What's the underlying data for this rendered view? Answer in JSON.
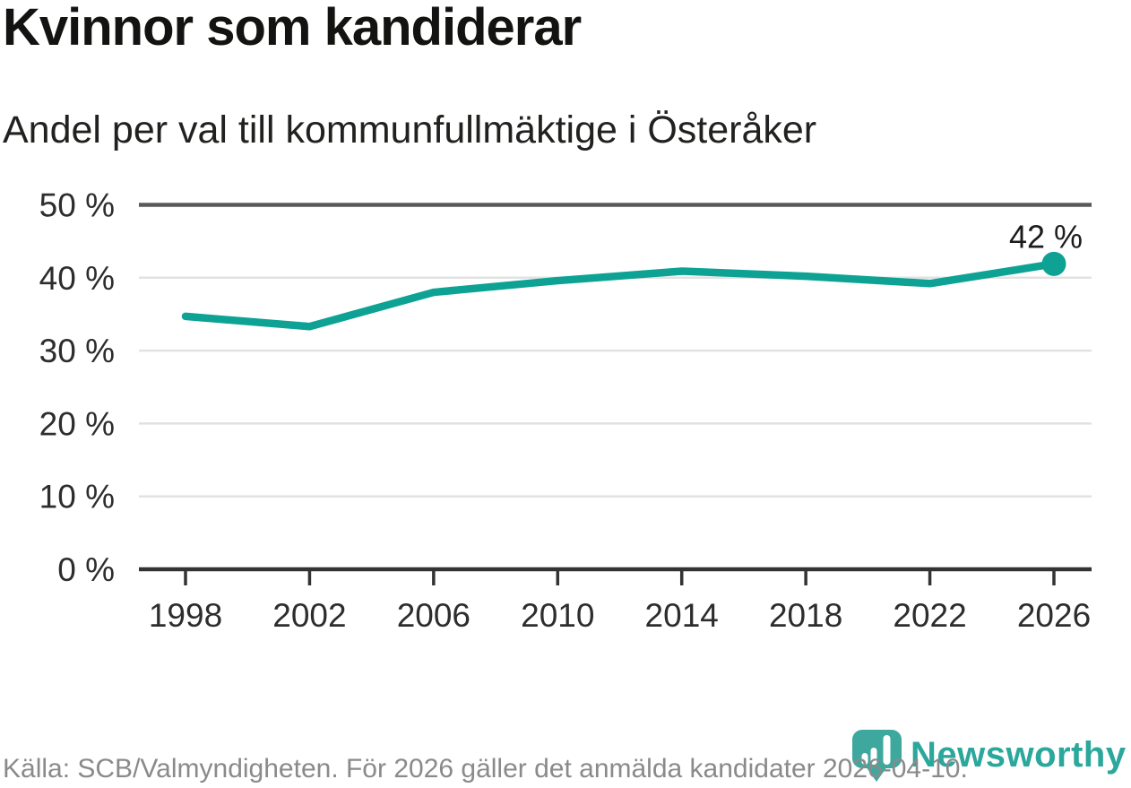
{
  "header": {
    "title": "Kvinnor som kandiderar",
    "subtitle": "Andel per val till kommunfullmäktige i Österåker"
  },
  "chart_data": {
    "type": "line",
    "title": "Kvinnor som kandiderar",
    "subtitle": "Andel per val till kommunfullmäktige i Österåker",
    "x": [
      1998,
      2002,
      2006,
      2010,
      2014,
      2018,
      2022,
      2026
    ],
    "xtick_labels": [
      "1998",
      "2002",
      "2006",
      "2010",
      "2014",
      "2018",
      "2022",
      "2026"
    ],
    "values": [
      34.7,
      33.3,
      38.0,
      39.6,
      40.9,
      40.2,
      39.2,
      41.9
    ],
    "unit": "%",
    "ylim": [
      0,
      50
    ],
    "yticks": [
      0,
      10,
      20,
      30,
      40,
      50
    ],
    "ytick_labels": [
      "0 %",
      "10 %",
      "20 %",
      "30 %",
      "40 %",
      "50 %"
    ],
    "end_label": "42 %",
    "grid": true,
    "legend": "none",
    "colors": {
      "line": "#0da293",
      "marker": "#0da293",
      "axis": "#333333",
      "grid": "#e2e2e2",
      "top_grid": "#595959",
      "tick_text": "#2d2d2d"
    }
  },
  "footer": {
    "source": "Källa: SCB/Valmyndigheten. För 2026 gäller det anmälda kandidater 2026-04-10.",
    "brand": "Newsworthy"
  },
  "branding": {
    "color": "#2ba79c",
    "pin_color": "#3ea89e",
    "pin_icon": "newsworthy-pin-bar-chart-icon"
  }
}
